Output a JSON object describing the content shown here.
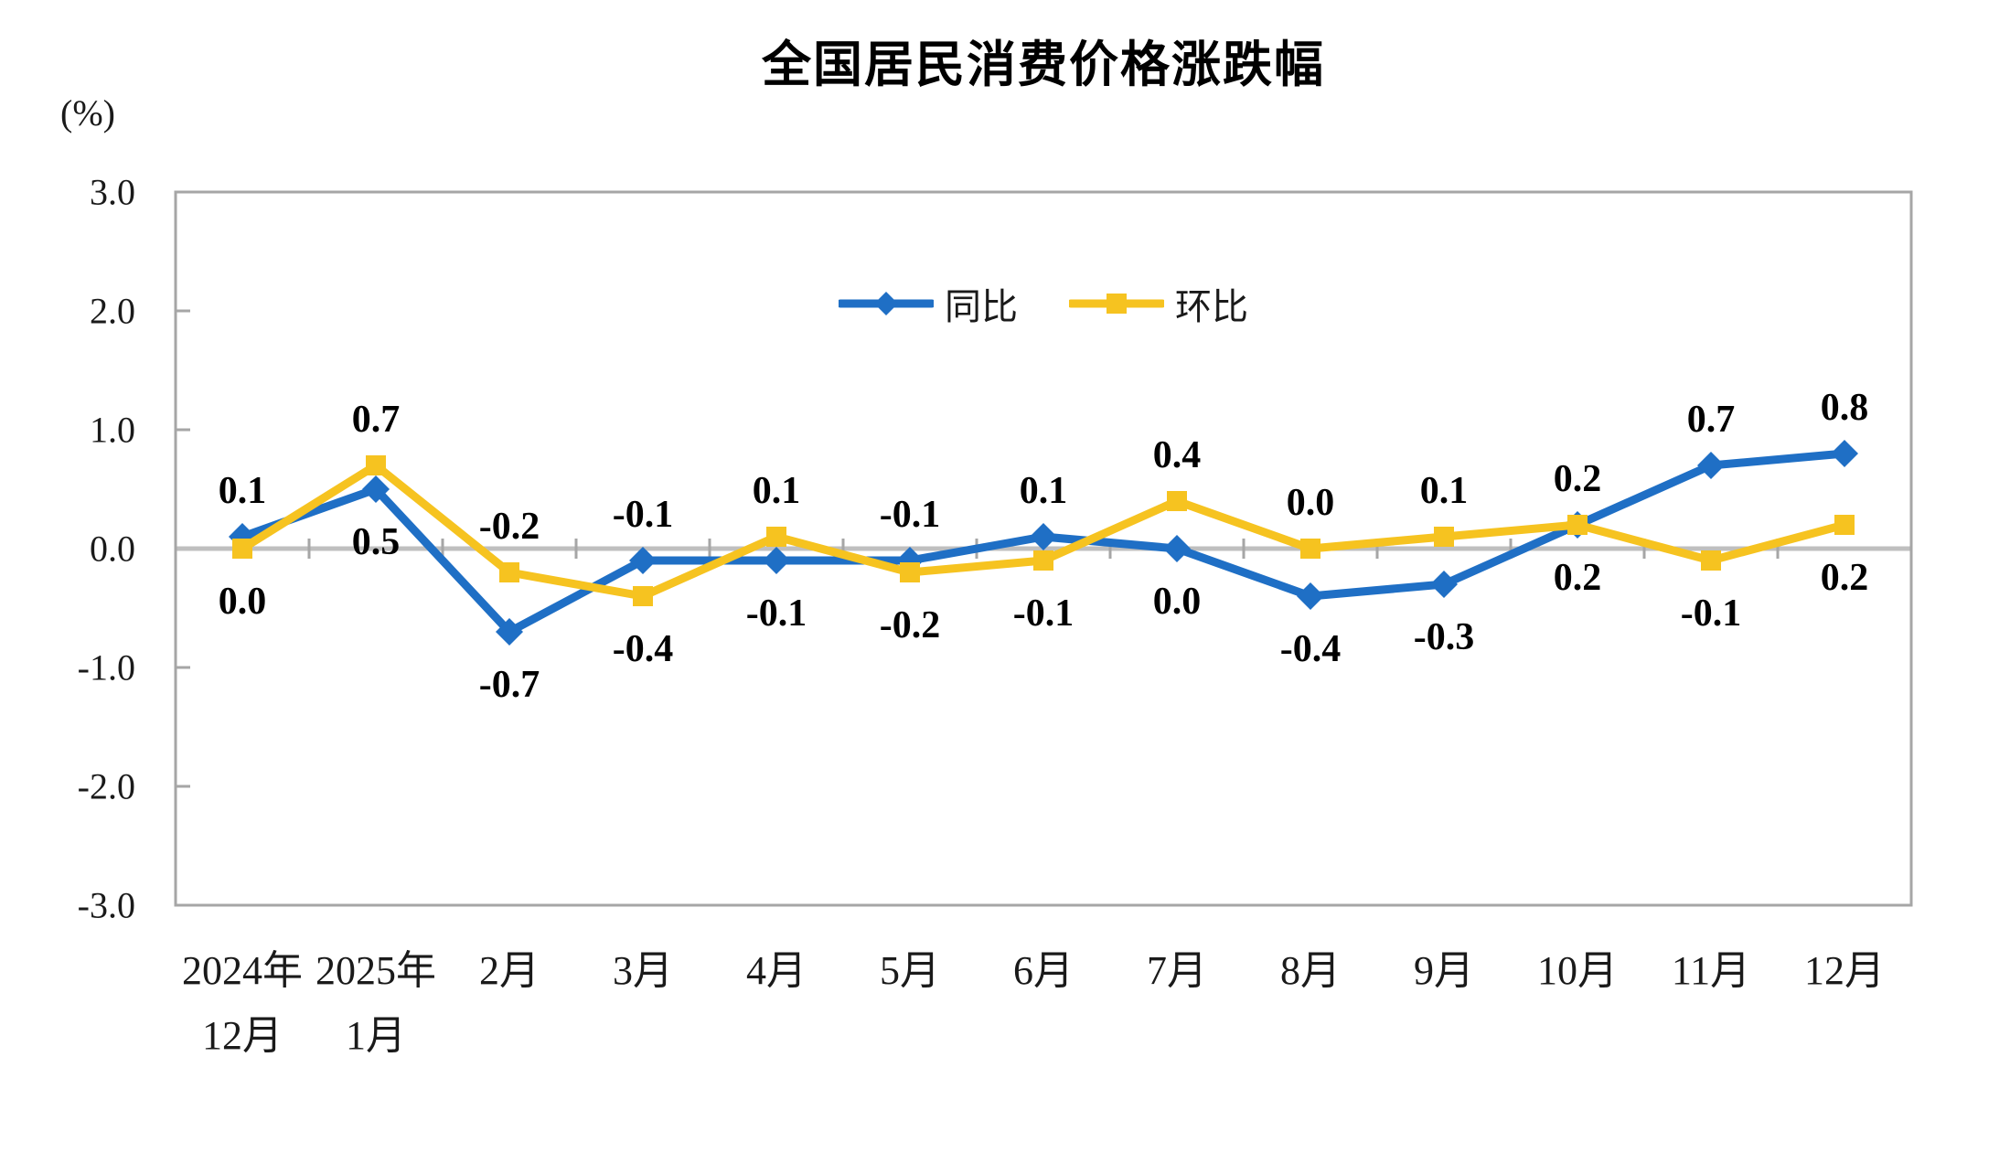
{
  "title": "全国居民消费价格涨跌幅",
  "unit_label": "(%)",
  "colors": {
    "tongbi_blue": "#1F6FC5",
    "huanbi_yellow": "#F6C320",
    "zero_line_gray": "#BFBFBF",
    "frame_gray": "#A6A6A6",
    "text_black": "#1A1A1A"
  },
  "legend": {
    "items": [
      {
        "label": "同比",
        "marker": "diamond",
        "color": "#1F6FC5"
      },
      {
        "label": "环比",
        "marker": "square",
        "color": "#F6C320"
      }
    ]
  },
  "chart_data": {
    "type": "line",
    "title": "全国居民消费价格涨跌幅",
    "ylabel": "(%)",
    "ylim": [
      -3.0,
      3.0
    ],
    "ytick_labels": [
      "3.0",
      "2.0",
      "1.0",
      "0.0",
      "-1.0",
      "-2.0",
      "-3.0"
    ],
    "ytick_values": [
      3,
      2,
      1,
      0,
      -1,
      -2,
      -3
    ],
    "grid": "zero-line-only",
    "legend_position": "inside-top-center",
    "categories": [
      [
        "2024年",
        "12月"
      ],
      [
        "2025年",
        "1月"
      ],
      [
        "2月"
      ],
      [
        "3月"
      ],
      [
        "4月"
      ],
      [
        "5月"
      ],
      [
        "6月"
      ],
      [
        "7月"
      ],
      [
        "8月"
      ],
      [
        "9月"
      ],
      [
        "10月"
      ],
      [
        "11月"
      ],
      [
        "12月"
      ]
    ],
    "series": [
      {
        "name": "同比",
        "marker": "diamond",
        "color": "#1F6FC5",
        "values": [
          0.1,
          0.5,
          -0.7,
          -0.1,
          -0.1,
          -0.1,
          0.1,
          0.0,
          -0.4,
          -0.3,
          0.2,
          0.7,
          0.8
        ],
        "labels": [
          "0.1",
          "0.5",
          "-0.7",
          "-0.1",
          "-0.1",
          "-0.1",
          "0.1",
          "0.0",
          "-0.4",
          "-0.3",
          "0.2",
          "0.7",
          "0.8"
        ],
        "label_positions": [
          "above",
          "below",
          "below",
          "above",
          "below",
          "above",
          "above",
          "below",
          "below",
          "below",
          "above",
          "above",
          "above"
        ]
      },
      {
        "name": "环比",
        "marker": "square",
        "color": "#F6C320",
        "values": [
          0.0,
          0.7,
          -0.2,
          -0.4,
          0.1,
          -0.2,
          -0.1,
          0.4,
          0.0,
          0.1,
          0.2,
          -0.1,
          0.2
        ],
        "labels": [
          "0.0",
          "0.7",
          "-0.2",
          "-0.4",
          "0.1",
          "-0.2",
          "-0.1",
          "0.4",
          "0.0",
          "0.1",
          "0.2",
          "-0.1",
          "0.2"
        ],
        "label_positions": [
          "below",
          "above",
          "above",
          "below",
          "above",
          "below",
          "below",
          "above",
          "above",
          "above",
          "below",
          "below",
          "below"
        ]
      }
    ]
  }
}
